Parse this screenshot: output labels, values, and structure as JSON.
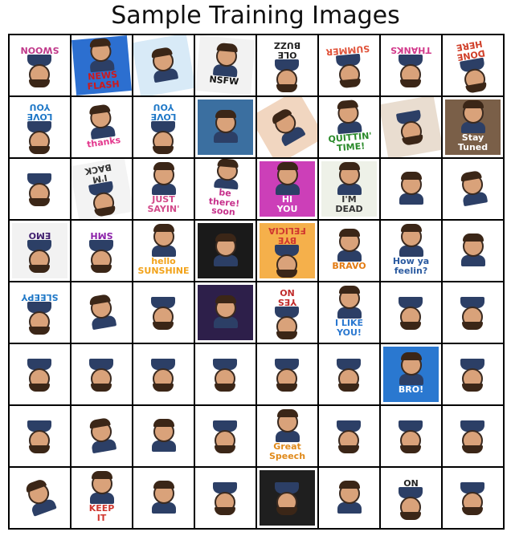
{
  "title": "Sample Training Images",
  "tiles": [
    {
      "text": "SWOON",
      "rot": 180,
      "color": "#c0398a",
      "bg": "#ffffff"
    },
    {
      "text": "NEWS\nFLASH",
      "rot": -5,
      "color": "#d01818",
      "bg": "#2c6fd0"
    },
    {
      "text": "",
      "rot": -10,
      "color": "#333",
      "bg": "#d8eaf7"
    },
    {
      "text": "NSFW",
      "rot": 5,
      "color": "#111",
      "bg": "#f2f2f2"
    },
    {
      "text": "OLE\nBUZZ",
      "rot": 180,
      "color": "#222",
      "bg": "#ffffff"
    },
    {
      "text": "SUMMER",
      "rot": 175,
      "color": "#e0533a",
      "bg": "#ffffff"
    },
    {
      "text": "THANKS",
      "rot": 180,
      "color": "#d23b8c",
      "bg": "#ffffff"
    },
    {
      "text": "DONE\nHERE",
      "rot": 170,
      "color": "#d0402a",
      "bg": "#ffffff"
    },
    {
      "text": "LOVE\nYOU",
      "rot": 180,
      "color": "#1f78c7",
      "bg": "#ffffff"
    },
    {
      "text": "thanks",
      "rot": -8,
      "color": "#e3398e",
      "bg": "#ffffff"
    },
    {
      "text": "LOVE\nYOU",
      "rot": 180,
      "color": "#1f78c7",
      "bg": "#ffffff"
    },
    {
      "text": "",
      "rot": 0,
      "color": "#fff",
      "bg": "#3b6fa0"
    },
    {
      "text": "",
      "rot": -30,
      "color": "#222",
      "bg": "#f1d6c0"
    },
    {
      "text": "QUITTIN'\nTIME!",
      "rot": -5,
      "color": "#2a8a2a",
      "bg": "#ffffff"
    },
    {
      "text": "",
      "rot": 170,
      "color": "#333",
      "bg": "#e9ddd0"
    },
    {
      "text": "Stay Tuned",
      "rot": 0,
      "color": "#ffffff",
      "bg": "#7a5f48"
    },
    {
      "text": "",
      "rot": 180,
      "color": "#e07b1c",
      "bg": "#ffffff"
    },
    {
      "text": "I'M\nBACK",
      "rot": 170,
      "color": "#333",
      "bg": "#f3f3f3"
    },
    {
      "text": "JUST SAYIN'",
      "rot": 0,
      "color": "#d24a8a",
      "bg": "#ffffff"
    },
    {
      "text": "be\nthere!\nsoon",
      "rot": 5,
      "color": "#c7328c",
      "bg": "#ffffff"
    },
    {
      "text": "HI\nYOU",
      "rot": 0,
      "color": "#ffffff",
      "bg": "#cc3fb8"
    },
    {
      "text": "I'M\nDEAD",
      "rot": 0,
      "color": "#333",
      "bg": "#eef1e8"
    },
    {
      "text": "",
      "rot": 0,
      "color": "#333",
      "bg": "#ffffff"
    },
    {
      "text": "",
      "rot": -10,
      "color": "#e63b1b",
      "bg": "#ffffff"
    },
    {
      "text": "EMO",
      "rot": 180,
      "color": "#3f1e6e",
      "bg": "#f2f2f2"
    },
    {
      "text": "SMH",
      "rot": 180,
      "color": "#8a1fa8",
      "bg": "#ffffff"
    },
    {
      "text": "hello\nSUNSHINE",
      "rot": 0,
      "color": "#f2a31b",
      "bg": "#ffffff"
    },
    {
      "text": "",
      "rot": 0,
      "color": "#fff",
      "bg": "#1a1a1a"
    },
    {
      "text": "BYE\nFELICIA",
      "rot": 180,
      "color": "#d0372f",
      "bg": "#f5b04b"
    },
    {
      "text": "BRAVO",
      "rot": 0,
      "color": "#e37c14",
      "bg": "#ffffff"
    },
    {
      "text": "How ya feelin?",
      "rot": 0,
      "color": "#2a5aa0",
      "bg": "#ffffff"
    },
    {
      "text": "",
      "rot": 0,
      "color": "#2a8a2a",
      "bg": "#ffffff"
    },
    {
      "text": "SLEEPY",
      "rot": 180,
      "color": "#1f78c7",
      "bg": "#ffffff"
    },
    {
      "text": "",
      "rot": -10,
      "color": "#1f78c7",
      "bg": "#ffffff"
    },
    {
      "text": "",
      "rot": 180,
      "color": "#333",
      "bg": "#ffffff"
    },
    {
      "text": "",
      "rot": 0,
      "color": "#e0533a",
      "bg": "#2d1f4a"
    },
    {
      "text": "YES\nNO",
      "rot": 180,
      "color": "#c02b2b",
      "bg": "#ffffff"
    },
    {
      "text": "I LIKE\nYOU!",
      "rot": 0,
      "color": "#2a78d0",
      "bg": "#ffffff"
    },
    {
      "text": "",
      "rot": 180,
      "color": "#c58a3a",
      "bg": "#ffffff"
    },
    {
      "text": "",
      "rot": 180,
      "color": "#333",
      "bg": "#ffffff"
    },
    {
      "text": "",
      "rot": 180,
      "color": "#d23b3b",
      "bg": "#ffffff"
    },
    {
      "text": "",
      "rot": 180,
      "color": "#3a8a2a",
      "bg": "#ffffff"
    },
    {
      "text": "",
      "rot": 180,
      "color": "#e0533a",
      "bg": "#ffffff"
    },
    {
      "text": "",
      "rot": 180,
      "color": "#d0372f",
      "bg": "#ffffff"
    },
    {
      "text": "",
      "rot": 180,
      "color": "#333",
      "bg": "#ffffff"
    },
    {
      "text": "",
      "rot": 180,
      "color": "#1aa39a",
      "bg": "#ffffff"
    },
    {
      "text": "BRO!",
      "rot": 0,
      "color": "#ffffff",
      "bg": "#2a78d0"
    },
    {
      "text": "",
      "rot": 180,
      "color": "#1aa39a",
      "bg": "#ffffff"
    },
    {
      "text": "",
      "rot": 180,
      "color": "#1f8a3a",
      "bg": "#ffffff"
    },
    {
      "text": "",
      "rot": -10,
      "color": "#d23b8c",
      "bg": "#ffffff"
    },
    {
      "text": "",
      "rot": 0,
      "color": "#e8a21b",
      "bg": "#ffffff"
    },
    {
      "text": "",
      "rot": 180,
      "color": "#2a78d0",
      "bg": "#ffffff"
    },
    {
      "text": "Great\nSpeech",
      "rot": 0,
      "color": "#e08a1b",
      "bg": "#ffffff"
    },
    {
      "text": "",
      "rot": 180,
      "color": "#333",
      "bg": "#ffffff"
    },
    {
      "text": "",
      "rot": 180,
      "color": "#e07b1c",
      "bg": "#ffffff"
    },
    {
      "text": "",
      "rot": 180,
      "color": "#d0372f",
      "bg": "#ffffff"
    },
    {
      "text": "",
      "rot": -20,
      "color": "#e0533a",
      "bg": "#ffffff"
    },
    {
      "text": "KEEP\nIT",
      "rot": 0,
      "color": "#d0372f",
      "bg": "#ffffff"
    },
    {
      "text": "",
      "rot": 0,
      "color": "#333",
      "bg": "#ffffff"
    },
    {
      "text": "",
      "rot": 180,
      "color": "#1f78c7",
      "bg": "#ffffff"
    },
    {
      "text": "",
      "rot": 180,
      "color": "#ffffff",
      "bg": "#1f1f1f"
    },
    {
      "text": "",
      "rot": 0,
      "color": "#333",
      "bg": "#ffffff"
    },
    {
      "text": "NO",
      "rot": 180,
      "color": "#222",
      "bg": "#ffffff"
    },
    {
      "text": "",
      "rot": 180,
      "color": "#e0533a",
      "bg": "#ffffff"
    }
  ]
}
